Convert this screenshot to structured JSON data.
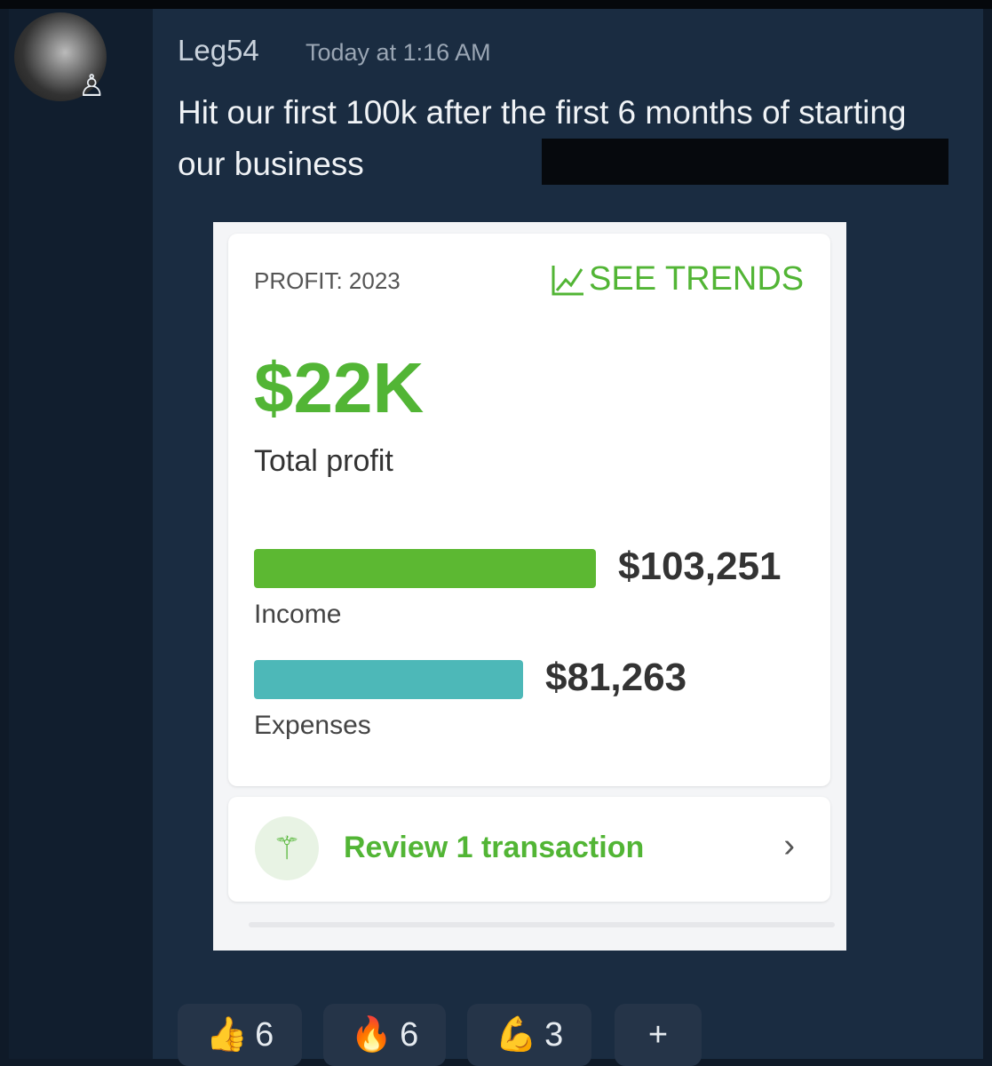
{
  "message": {
    "username": "Leg54",
    "timestamp": "Today at 1:16 AM",
    "text": "Hit our first 100k after the first 6 months of starting our business"
  },
  "widget": {
    "profit_label": "PROFIT: 2023",
    "see_trends": "SEE TRENDS",
    "total": "$22K",
    "total_label": "Total profit",
    "income": {
      "label": "Income",
      "value": "$103,251",
      "amount": 103251,
      "color": "#5cb832"
    },
    "expenses": {
      "label": "Expenses",
      "value": "$81,263",
      "amount": 81263,
      "color": "#4db8b8"
    },
    "review": "Review 1 transaction"
  },
  "reactions": [
    {
      "emoji": "👍",
      "count": "6"
    },
    {
      "emoji": "🔥",
      "count": "6"
    },
    {
      "emoji": "💪",
      "count": "3"
    }
  ],
  "add_reaction": "+"
}
